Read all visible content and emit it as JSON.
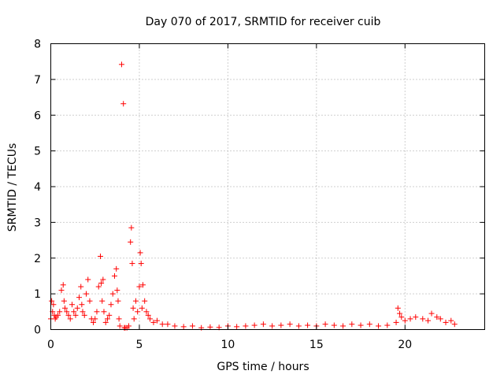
{
  "chart_data": {
    "type": "scatter",
    "title": "Day 070 of 2017, SRMTID for receiver cuib",
    "xlabel": "GPS time / hours",
    "ylabel": "SRMTID / TECUs",
    "xlim": [
      0,
      24.5
    ],
    "ylim": [
      0,
      8
    ],
    "xticks": [
      0,
      5,
      10,
      15,
      20
    ],
    "yticks": [
      0,
      1,
      2,
      3,
      4,
      5,
      6,
      7,
      8
    ],
    "xtick_labels": [
      "0",
      "5",
      "10",
      "15",
      "20"
    ],
    "ytick_labels": [
      "0",
      "1",
      "2",
      "3",
      "4",
      "5",
      "6",
      "7",
      "8"
    ],
    "grid": true,
    "marker": "+",
    "color": "#ff0000",
    "series": [
      {
        "name": "cuib",
        "x": [
          0.0,
          0.05,
          0.1,
          0.15,
          0.2,
          0.25,
          0.3,
          0.4,
          0.5,
          0.6,
          0.7,
          0.75,
          0.8,
          0.9,
          1.0,
          1.1,
          1.2,
          1.3,
          1.4,
          1.5,
          1.6,
          1.7,
          1.75,
          1.8,
          1.9,
          2.0,
          2.1,
          2.2,
          2.3,
          2.4,
          2.5,
          2.6,
          2.7,
          2.8,
          2.85,
          2.9,
          2.95,
          3.0,
          3.1,
          3.2,
          3.3,
          3.4,
          3.5,
          3.6,
          3.7,
          3.75,
          3.8,
          3.85,
          3.9,
          4.0,
          4.1,
          4.15,
          4.2,
          4.3,
          4.4,
          4.5,
          4.55,
          4.6,
          4.65,
          4.7,
          4.8,
          4.9,
          5.0,
          5.05,
          5.1,
          5.15,
          5.2,
          5.3,
          5.4,
          5.5,
          5.6,
          5.8,
          6.0,
          6.3,
          6.6,
          7.0,
          7.5,
          8.0,
          8.5,
          9.0,
          9.5,
          10.0,
          10.5,
          11.0,
          11.5,
          12.0,
          12.5,
          13.0,
          13.5,
          14.0,
          14.5,
          15.0,
          15.5,
          16.0,
          16.5,
          17.0,
          17.5,
          18.0,
          18.5,
          19.0,
          19.5,
          19.6,
          19.7,
          19.8,
          20.0,
          20.3,
          20.6,
          21.0,
          21.3,
          21.5,
          21.8,
          22.0,
          22.3,
          22.6,
          22.8
        ],
        "y": [
          0.3,
          0.8,
          0.5,
          0.7,
          0.4,
          0.3,
          0.35,
          0.4,
          0.5,
          1.1,
          1.25,
          0.8,
          0.6,
          0.5,
          0.4,
          0.3,
          0.7,
          0.5,
          0.4,
          0.6,
          0.9,
          1.2,
          0.7,
          0.5,
          0.4,
          1.0,
          1.4,
          0.8,
          0.3,
          0.2,
          0.3,
          0.5,
          1.2,
          2.05,
          1.3,
          0.8,
          1.4,
          0.5,
          0.2,
          0.3,
          0.4,
          0.7,
          1.0,
          1.5,
          1.7,
          1.1,
          0.8,
          0.3,
          0.1,
          7.42,
          6.32,
          0.05,
          0.05,
          0.05,
          0.1,
          2.45,
          2.85,
          1.85,
          0.6,
          0.3,
          0.8,
          0.5,
          1.2,
          2.15,
          1.85,
          0.6,
          1.25,
          0.8,
          0.5,
          0.4,
          0.3,
          0.2,
          0.25,
          0.15,
          0.15,
          0.1,
          0.08,
          0.1,
          0.05,
          0.07,
          0.06,
          0.1,
          0.08,
          0.1,
          0.12,
          0.15,
          0.1,
          0.12,
          0.15,
          0.1,
          0.12,
          0.1,
          0.15,
          0.12,
          0.1,
          0.15,
          0.12,
          0.15,
          0.1,
          0.12,
          0.2,
          0.6,
          0.45,
          0.35,
          0.25,
          0.3,
          0.35,
          0.3,
          0.25,
          0.45,
          0.35,
          0.3,
          0.2,
          0.25,
          0.15
        ]
      }
    ]
  }
}
